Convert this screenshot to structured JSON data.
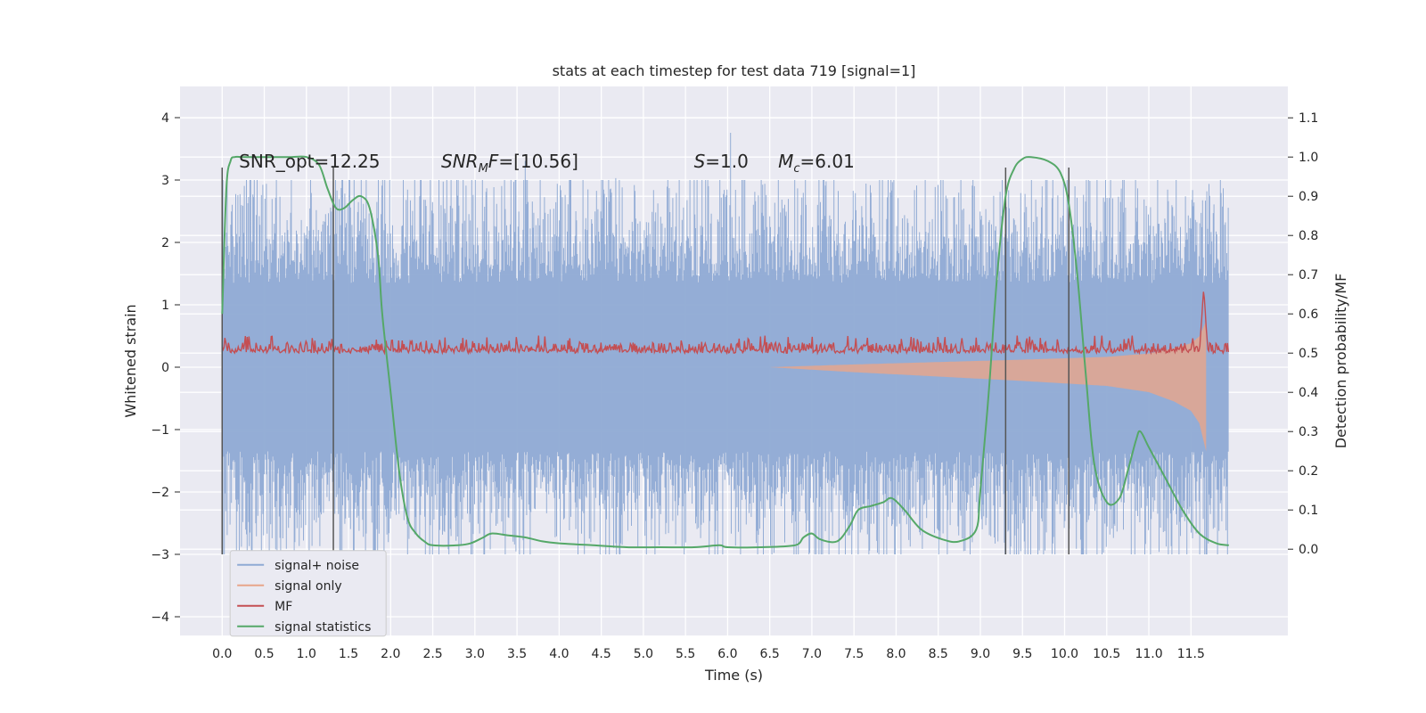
{
  "chart_data": {
    "type": "line",
    "title": "stats at each timestep for test data 719 [signal=1]",
    "xlabel": "Time (s)",
    "ylabel": "Whitened strain",
    "y2label": "Detection probability/MF",
    "xlim": [
      -0.5,
      12.65
    ],
    "ylim": [
      -4.3,
      4.5
    ],
    "y2lim": [
      -0.22,
      1.18
    ],
    "xticks": [
      0.0,
      0.5,
      1.0,
      1.5,
      2.0,
      2.5,
      3.0,
      3.5,
      4.0,
      4.5,
      5.0,
      5.5,
      6.0,
      6.5,
      7.0,
      7.5,
      8.0,
      8.5,
      9.0,
      9.5,
      10.0,
      10.5,
      11.0,
      11.5
    ],
    "xtick_labels": [
      "0.0",
      "0.5",
      "1.0",
      "1.5",
      "2.0",
      "2.5",
      "3.0",
      "3.5",
      "4.0",
      "4.5",
      "5.0",
      "5.5",
      "6.0",
      "6.5",
      "7.0",
      "7.5",
      "8.0",
      "8.5",
      "9.0",
      "9.5",
      "10.0",
      "10.5",
      "11.0",
      "11.5"
    ],
    "yticks": [
      4,
      3,
      2,
      1,
      0,
      -1,
      -2,
      -3,
      -4
    ],
    "ytick_labels": [
      "4",
      "3",
      "2",
      "1",
      "0",
      "−1",
      "−2",
      "−3",
      "−4"
    ],
    "y2ticks": [
      1.1,
      1.0,
      0.9,
      0.8,
      0.7,
      0.6,
      0.5,
      0.4,
      0.3,
      0.2,
      0.1,
      0.0
    ],
    "y2tick_labels": [
      "1.1",
      "1.0",
      "0.9",
      "0.8",
      "0.7",
      "0.6",
      "0.5",
      "0.4",
      "0.3",
      "0.2",
      "0.1",
      "0.0"
    ],
    "grid": true,
    "legend_position": "bottom-left",
    "annotations": [
      {
        "text": "SNR_opt=12.25",
        "x": 0.2,
        "y": 3.2
      },
      {
        "text": "SNR_MF=[10.56]",
        "x": 2.6,
        "y": 3.2
      },
      {
        "text": "S=1.0",
        "x": 5.6,
        "y": 3.2
      },
      {
        "text": "Mc=6.01",
        "x": 6.6,
        "y": 3.2
      }
    ],
    "vlines": {
      "x": [
        0.0,
        1.32,
        9.3,
        10.05
      ],
      "ymin": -3.0,
      "ymax": 3.2,
      "color": "#555555"
    },
    "series": [
      {
        "name": "signal+ noise",
        "axis": "left",
        "color": "#8faad4",
        "kind": "noise",
        "x_range": [
          0.0,
          11.95
        ],
        "envelope_sigma": 0.9,
        "typical_abs_max": 3.0
      },
      {
        "name": "signal only",
        "axis": "left",
        "color": "#e8a58a",
        "kind": "chirp",
        "x_range": [
          6.5,
          11.68
        ],
        "amplitude": [
          [
            6.5,
            0.0
          ],
          [
            7.5,
            0.08
          ],
          [
            8.5,
            0.15
          ],
          [
            9.5,
            0.22
          ],
          [
            10.0,
            0.26
          ],
          [
            10.5,
            0.3
          ],
          [
            11.0,
            0.4
          ],
          [
            11.3,
            0.55
          ],
          [
            11.5,
            0.7
          ],
          [
            11.6,
            0.9
          ],
          [
            11.68,
            1.35
          ]
        ]
      },
      {
        "name": "MF",
        "axis": "right",
        "color": "#c44e52",
        "kind": "noise",
        "x_range": [
          0.0,
          11.95
        ],
        "baseline": 0.5,
        "typical_abs_max": 0.04,
        "peak": {
          "x": 11.65,
          "value": 0.66
        }
      },
      {
        "name": "signal statistics",
        "axis": "right",
        "color": "#55a868",
        "kind": "line",
        "x": [
          0.0,
          0.05,
          0.1,
          0.15,
          0.25,
          0.5,
          0.8,
          1.0,
          1.15,
          1.25,
          1.35,
          1.45,
          1.55,
          1.65,
          1.75,
          1.85,
          1.9,
          2.0,
          2.1,
          2.2,
          2.3,
          2.4,
          2.5,
          2.8,
          2.95,
          3.1,
          3.2,
          3.4,
          3.6,
          3.8,
          4.0,
          4.4,
          4.8,
          5.2,
          5.6,
          5.9,
          6.0,
          6.4,
          6.8,
          6.9,
          7.0,
          7.1,
          7.3,
          7.45,
          7.55,
          7.7,
          7.85,
          7.95,
          8.1,
          8.3,
          8.55,
          8.75,
          8.95,
          9.0,
          9.1,
          9.2,
          9.3,
          9.4,
          9.5,
          9.6,
          9.8,
          9.95,
          10.05,
          10.15,
          10.25,
          10.35,
          10.5,
          10.65,
          10.75,
          10.85,
          10.9,
          11.0,
          11.2,
          11.4,
          11.6,
          11.8,
          11.95
        ],
        "values": [
          0.6,
          0.92,
          0.99,
          1.0,
          1.0,
          1.0,
          1.0,
          1.0,
          0.98,
          0.92,
          0.87,
          0.87,
          0.89,
          0.9,
          0.87,
          0.75,
          0.6,
          0.4,
          0.2,
          0.08,
          0.04,
          0.02,
          0.01,
          0.01,
          0.015,
          0.03,
          0.04,
          0.035,
          0.03,
          0.02,
          0.015,
          0.01,
          0.005,
          0.005,
          0.005,
          0.01,
          0.005,
          0.005,
          0.01,
          0.03,
          0.04,
          0.025,
          0.02,
          0.06,
          0.1,
          0.11,
          0.12,
          0.13,
          0.1,
          0.05,
          0.025,
          0.02,
          0.05,
          0.15,
          0.4,
          0.7,
          0.9,
          0.97,
          0.995,
          1.0,
          0.99,
          0.96,
          0.88,
          0.7,
          0.45,
          0.22,
          0.12,
          0.13,
          0.2,
          0.28,
          0.3,
          0.26,
          0.18,
          0.1,
          0.04,
          0.015,
          0.01
        ]
      }
    ]
  },
  "legend": {
    "items": [
      {
        "label": "signal+ noise",
        "color": "#8faad4"
      },
      {
        "label": "signal only",
        "color": "#e8a58a"
      },
      {
        "label": "MF",
        "color": "#c44e52"
      },
      {
        "label": "signal statistics",
        "color": "#55a868"
      }
    ]
  }
}
